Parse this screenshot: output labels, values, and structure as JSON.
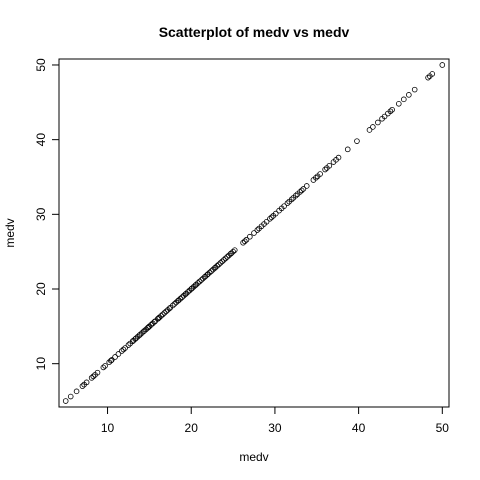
{
  "chart_data": {
    "type": "scatter",
    "title": "Scatterplot of medv vs medv",
    "xlabel": "medv",
    "ylabel": "medv",
    "xlim": [
      4.2,
      50.8
    ],
    "ylim": [
      4.2,
      50.8
    ],
    "xticks": [
      10,
      20,
      30,
      40,
      50
    ],
    "yticks": [
      10,
      20,
      30,
      40,
      50
    ],
    "grid": false,
    "marker": "open-circle",
    "series": [
      {
        "x": [
          5.0,
          5.6,
          6.3,
          7.0,
          7.2,
          7.5,
          8.1,
          8.3,
          8.5,
          8.8,
          9.5,
          9.7,
          10.2,
          10.4,
          10.5,
          10.9,
          11.3,
          11.7,
          11.9,
          12.1,
          12.5,
          12.7,
          13.0,
          13.1,
          13.3,
          13.4,
          13.6,
          13.8,
          13.9,
          14.1,
          14.3,
          14.4,
          14.6,
          14.8,
          14.9,
          15.0,
          15.2,
          15.4,
          15.6,
          15.7,
          16.0,
          16.1,
          16.2,
          16.4,
          16.6,
          16.8,
          17.0,
          17.2,
          17.4,
          17.5,
          17.8,
          18.0,
          18.2,
          18.4,
          18.5,
          18.7,
          18.9,
          19.1,
          19.3,
          19.4,
          19.6,
          19.8,
          20.0,
          20.1,
          20.3,
          20.5,
          20.6,
          20.8,
          21.0,
          21.2,
          21.4,
          21.6,
          21.7,
          21.9,
          22.0,
          22.2,
          22.4,
          22.6,
          22.8,
          22.9,
          23.1,
          23.3,
          23.5,
          23.7,
          23.9,
          24.1,
          24.3,
          24.5,
          24.7,
          24.8,
          25.0,
          25.2,
          26.2,
          26.4,
          26.6,
          27.0,
          27.5,
          27.9,
          28.1,
          28.4,
          28.7,
          29.0,
          29.4,
          29.6,
          29.8,
          30.1,
          30.5,
          30.8,
          31.1,
          31.5,
          31.7,
          32.0,
          32.2,
          32.5,
          32.7,
          33.0,
          33.2,
          33.4,
          33.8,
          34.6,
          34.9,
          35.1,
          35.4,
          36.0,
          36.2,
          36.5,
          37.0,
          37.3,
          37.6,
          38.7,
          39.8,
          41.3,
          41.7,
          42.3,
          42.8,
          43.1,
          43.5,
          43.8,
          44.0,
          44.8,
          45.4,
          46.0,
          46.7,
          48.3,
          48.5,
          48.8,
          50.0
        ],
        "y": [
          5.0,
          5.6,
          6.3,
          7.0,
          7.2,
          7.5,
          8.1,
          8.3,
          8.5,
          8.8,
          9.5,
          9.7,
          10.2,
          10.4,
          10.5,
          10.9,
          11.3,
          11.7,
          11.9,
          12.1,
          12.5,
          12.7,
          13.0,
          13.1,
          13.3,
          13.4,
          13.6,
          13.8,
          13.9,
          14.1,
          14.3,
          14.4,
          14.6,
          14.8,
          14.9,
          15.0,
          15.2,
          15.4,
          15.6,
          15.7,
          16.0,
          16.1,
          16.2,
          16.4,
          16.6,
          16.8,
          17.0,
          17.2,
          17.4,
          17.5,
          17.8,
          18.0,
          18.2,
          18.4,
          18.5,
          18.7,
          18.9,
          19.1,
          19.3,
          19.4,
          19.6,
          19.8,
          20.0,
          20.1,
          20.3,
          20.5,
          20.6,
          20.8,
          21.0,
          21.2,
          21.4,
          21.6,
          21.7,
          21.9,
          22.0,
          22.2,
          22.4,
          22.6,
          22.8,
          22.9,
          23.1,
          23.3,
          23.5,
          23.7,
          23.9,
          24.1,
          24.3,
          24.5,
          24.7,
          24.8,
          25.0,
          25.2,
          26.2,
          26.4,
          26.6,
          27.0,
          27.5,
          27.9,
          28.1,
          28.4,
          28.7,
          29.0,
          29.4,
          29.6,
          29.8,
          30.1,
          30.5,
          30.8,
          31.1,
          31.5,
          31.7,
          32.0,
          32.2,
          32.5,
          32.7,
          33.0,
          33.2,
          33.4,
          33.8,
          34.6,
          34.9,
          35.1,
          35.4,
          36.0,
          36.2,
          36.5,
          37.0,
          37.3,
          37.6,
          38.7,
          39.8,
          41.3,
          41.7,
          42.3,
          42.8,
          43.1,
          43.5,
          43.8,
          44.0,
          44.8,
          45.4,
          46.0,
          46.7,
          48.3,
          48.5,
          48.8,
          50.0
        ]
      }
    ]
  }
}
